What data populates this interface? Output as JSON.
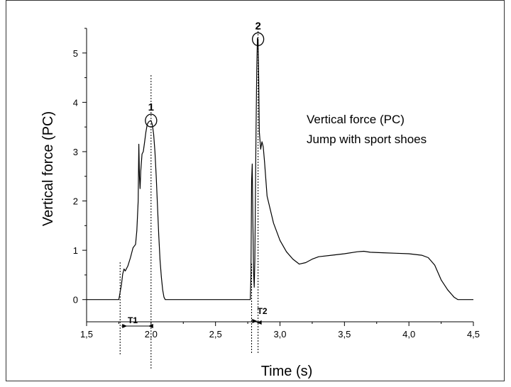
{
  "chart_data": {
    "type": "line",
    "xlabel": "Time (s)",
    "ylabel": "Vertical force (PC)",
    "xlim": [
      1.5,
      4.5
    ],
    "ylim": [
      -0.45,
      5.5
    ],
    "x_ticks": [
      1.5,
      2.0,
      2.5,
      3.0,
      3.5,
      4.0,
      4.5
    ],
    "x_tick_labels": [
      "1,5",
      "2,0",
      "2,5",
      "3,0",
      "3,5",
      "4,0",
      "4,5"
    ],
    "y_ticks": [
      0,
      1,
      2,
      3,
      4,
      5
    ],
    "y_tick_labels": [
      "0",
      "1",
      "2",
      "3",
      "4",
      "5"
    ],
    "grid": false,
    "annotation_lines": [
      "Vertical force (PC)",
      "Jump with sport shoes"
    ],
    "markers": [
      {
        "label": "1",
        "x": 2.0,
        "y": 3.63
      },
      {
        "label": "2",
        "x": 2.83,
        "y": 5.28
      }
    ],
    "intervals": [
      {
        "label": "T1",
        "x_start": 1.76,
        "x_end": 2.0
      },
      {
        "label": "T2",
        "x_start": 2.78,
        "x_end": 2.83
      }
    ],
    "series": [
      {
        "x": [
          1.5,
          1.75,
          1.77,
          1.78,
          1.79,
          1.8,
          1.82,
          1.84,
          1.86,
          1.88,
          1.89,
          1.9,
          1.905,
          1.91,
          1.915,
          1.92,
          1.93,
          1.94,
          1.95,
          1.96,
          1.97,
          1.98,
          1.99,
          2.0,
          2.01,
          2.02,
          2.03,
          2.04,
          2.05,
          2.06,
          2.07,
          2.08,
          2.09,
          2.1,
          2.11,
          2.3,
          2.5,
          2.7,
          2.77,
          2.775,
          2.78,
          2.785,
          2.79,
          2.795,
          2.8,
          2.805,
          2.81,
          2.815,
          2.82,
          2.825,
          2.83,
          2.835,
          2.84,
          2.85,
          2.86,
          2.87,
          2.88,
          2.89,
          2.9,
          2.95,
          3.0,
          3.05,
          3.1,
          3.15,
          3.2,
          3.25,
          3.3,
          3.4,
          3.5,
          3.6,
          3.65,
          3.7,
          3.8,
          3.9,
          4.0,
          4.1,
          4.15,
          4.2,
          4.25,
          4.3,
          4.35,
          4.38,
          4.4,
          4.5
        ],
        "y": [
          0,
          0,
          0.3,
          0.52,
          0.62,
          0.58,
          0.68,
          0.85,
          1.05,
          1.12,
          1.4,
          2.0,
          3.15,
          2.5,
          2.25,
          2.6,
          2.95,
          3.0,
          3.2,
          3.4,
          3.55,
          3.6,
          3.62,
          3.63,
          3.55,
          3.35,
          3.0,
          2.5,
          1.9,
          1.3,
          0.8,
          0.45,
          0.2,
          0.05,
          0,
          0,
          0,
          0,
          0,
          0.5,
          2.4,
          2.75,
          1.5,
          0.55,
          0.25,
          0.8,
          2.3,
          3.6,
          4.7,
          5.3,
          5.28,
          4.5,
          3.4,
          3.05,
          3.2,
          3.1,
          2.8,
          2.45,
          2.1,
          1.55,
          1.2,
          0.97,
          0.82,
          0.72,
          0.75,
          0.82,
          0.87,
          0.9,
          0.93,
          0.97,
          0.98,
          0.96,
          0.95,
          0.94,
          0.93,
          0.9,
          0.85,
          0.7,
          0.4,
          0.2,
          0.05,
          0,
          0,
          0
        ]
      }
    ]
  }
}
